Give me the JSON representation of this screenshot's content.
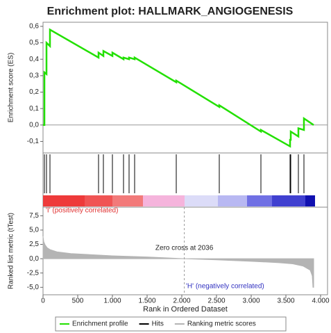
{
  "chart_data": [
    {
      "type": "line",
      "title": "Enrichment plot: HALLMARK_ANGIOGENESIS",
      "y_label": "Enrichment score (ES)",
      "xlim": [
        0,
        4100
      ],
      "ylim": [
        -0.17,
        0.625
      ],
      "yticks": [
        {
          "value": 0.6,
          "label": "0,6"
        },
        {
          "value": 0.5,
          "label": "0,5"
        },
        {
          "value": 0.4,
          "label": "0,4"
        },
        {
          "value": 0.3,
          "label": "0,3"
        },
        {
          "value": 0.2,
          "label": "0,2"
        },
        {
          "value": 0.1,
          "label": "0,1"
        },
        {
          "value": 0.0,
          "label": "0,0"
        },
        {
          "value": -0.1,
          "label": "-0,1"
        }
      ],
      "series": [
        {
          "name": "Enrichment profile",
          "color": "#22e000",
          "x": [
            0,
            20,
            20,
            50,
            50,
            100,
            100,
            800,
            800,
            870,
            870,
            1000,
            1000,
            1160,
            1160,
            1240,
            1240,
            1320,
            1320,
            1920,
            1920,
            2540,
            2540,
            3140,
            3140,
            3560,
            3560,
            3570,
            3570,
            3680,
            3680,
            3760,
            3760,
            3900
          ],
          "values": [
            0,
            0,
            0.32,
            0.31,
            0.5,
            0.48,
            0.58,
            0.41,
            0.44,
            0.42,
            0.45,
            0.42,
            0.44,
            0.4,
            0.41,
            0.4,
            0.41,
            0.4,
            0.41,
            0.26,
            0.27,
            0.11,
            0.12,
            -0.04,
            -0.03,
            -0.13,
            -0.09,
            -0.09,
            -0.04,
            -0.07,
            -0.02,
            -0.03,
            0.04,
            0.0
          ]
        }
      ]
    },
    {
      "type": "hits",
      "xlim": [
        0,
        4100
      ],
      "series": [
        {
          "name": "Hits",
          "color": "#000000",
          "x": [
            20,
            50,
            100,
            800,
            870,
            1000,
            1160,
            1240,
            1320,
            1920,
            2540,
            3140,
            3560,
            3570,
            3680,
            3760
          ]
        }
      ],
      "positive_label": "'I' (positively correlated)",
      "negative_label": "'H' (negatively correlated)"
    },
    {
      "type": "area",
      "y_label": "Ranked list metric (tTest)",
      "x_label": "Rank in Ordered Dataset",
      "xlim": [
        0,
        4100
      ],
      "ylim": [
        -6.3,
        9.0
      ],
      "xticks": [
        0,
        500,
        {
          "value": 1000,
          "label": "1.000"
        },
        {
          "value": 1500,
          "label": "1.500"
        },
        {
          "value": 2000,
          "label": "2.000"
        },
        {
          "value": 2500,
          "label": "2.500"
        },
        {
          "value": 3000,
          "label": "3.000"
        },
        {
          "value": 3500,
          "label": "3.500"
        },
        {
          "value": 4000,
          "label": "4.000"
        }
      ],
      "yticks": [
        {
          "value": 7.5,
          "label": "7,5"
        },
        {
          "value": 5.0,
          "label": "5,0"
        },
        {
          "value": 2.5,
          "label": "2,5"
        },
        {
          "value": 0.0,
          "label": "0,0"
        },
        {
          "value": -2.5,
          "label": "-2,5"
        },
        {
          "value": -5.0,
          "label": "-5,0"
        }
      ],
      "zero_cross": 2036,
      "annotation": "Zero cross at 2036",
      "series": [
        {
          "name": "Ranking metric scores",
          "color": "#b4b4b4",
          "x": [
            0,
            10,
            30,
            60,
            100,
            200,
            400,
            700,
            1000,
            1500,
            2036,
            2500,
            3000,
            3400,
            3600,
            3750,
            3850,
            3880,
            3890,
            3900
          ],
          "values": [
            3.9,
            3.0,
            2.4,
            1.9,
            1.6,
            1.2,
            0.9,
            0.7,
            0.5,
            0.3,
            0,
            -0.2,
            -0.45,
            -0.7,
            -0.9,
            -1.3,
            -2.0,
            -3.0,
            -5.0,
            -5.0
          ]
        }
      ]
    }
  ]
}
